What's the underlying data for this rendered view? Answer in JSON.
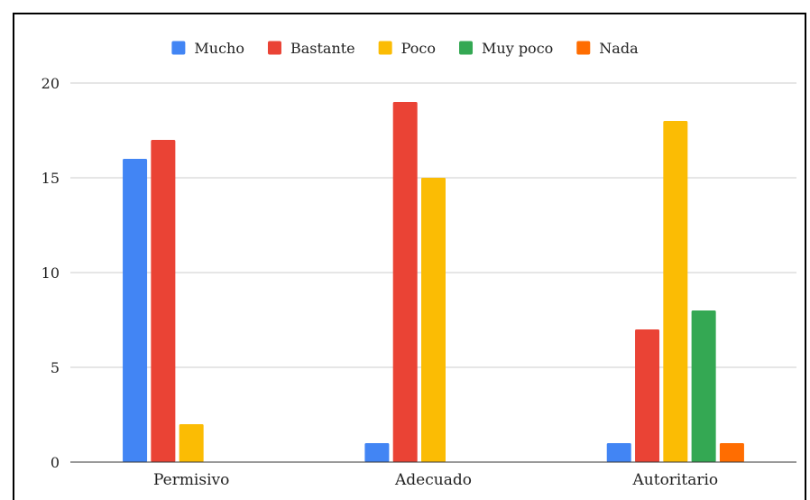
{
  "chart_data": {
    "type": "bar",
    "categories": [
      "Permisivo",
      "Adecuado",
      "Autoritario"
    ],
    "series": [
      {
        "name": "Mucho",
        "color": "#4285F4",
        "values": [
          16,
          1,
          1
        ]
      },
      {
        "name": "Bastante",
        "color": "#EA4335",
        "values": [
          17,
          19,
          7
        ]
      },
      {
        "name": "Poco",
        "color": "#FBBC04",
        "values": [
          2,
          15,
          18
        ]
      },
      {
        "name": "Muy poco",
        "color": "#34A853",
        "values": [
          0,
          0,
          8
        ]
      },
      {
        "name": "Nada",
        "color": "#FF6D01",
        "values": [
          0,
          0,
          1
        ]
      }
    ],
    "ylim": [
      0,
      20
    ],
    "yticks": [
      0,
      5,
      10,
      15,
      20
    ],
    "grid": true,
    "legend": "top"
  }
}
